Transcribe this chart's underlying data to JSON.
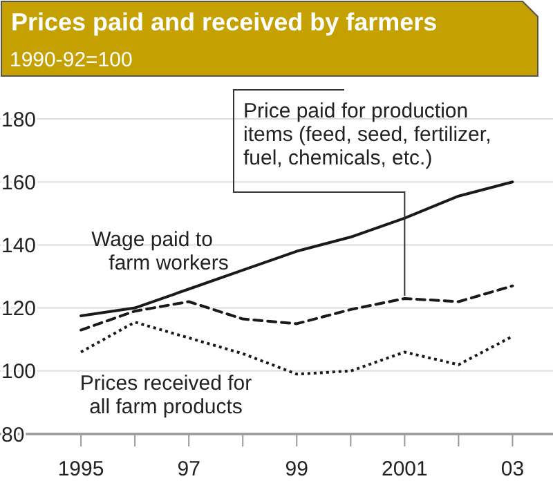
{
  "chart_data": {
    "type": "line",
    "title": "Prices paid and received by farmers",
    "subtitle": "1990-92=100",
    "x": [
      1995,
      1996,
      1997,
      1998,
      1999,
      2000,
      2001,
      2002,
      2003
    ],
    "xlim": [
      1993.5,
      2003.75
    ],
    "xticks": [
      {
        "value": 1995,
        "label": "1995"
      },
      {
        "value": 1996,
        "label": null
      },
      {
        "value": 1997,
        "label": "97"
      },
      {
        "value": 1998,
        "label": null
      },
      {
        "value": 1999,
        "label": "99"
      },
      {
        "value": 2000,
        "label": null
      },
      {
        "value": 2001,
        "label": "2001"
      },
      {
        "value": 2002,
        "label": null
      },
      {
        "value": 2003,
        "label": "03"
      }
    ],
    "ylim": [
      80,
      180
    ],
    "yticks": [
      80,
      100,
      120,
      140,
      160,
      180
    ],
    "grid": "y",
    "series": [
      {
        "name": "Wage paid to farm workers",
        "color": "#1a1a1a",
        "line_style": "solid",
        "values": [
          117.5,
          120,
          126,
          132,
          138,
          142.5,
          148.5,
          155.5,
          160
        ]
      },
      {
        "name": "Price paid for production items (feed, seed, fertilizer, fuel, chemicals, etc.)",
        "color": "#1a1a1a",
        "line_style": "dashed",
        "values": [
          113,
          119,
          122,
          116.5,
          115,
          119.5,
          123,
          122,
          127
        ]
      },
      {
        "name": "Prices received for all farm products",
        "color": "#1a1a1a",
        "line_style": "dotted",
        "values": [
          106,
          115.5,
          110.5,
          105.5,
          99,
          100,
          106,
          102,
          111
        ]
      }
    ]
  }
}
